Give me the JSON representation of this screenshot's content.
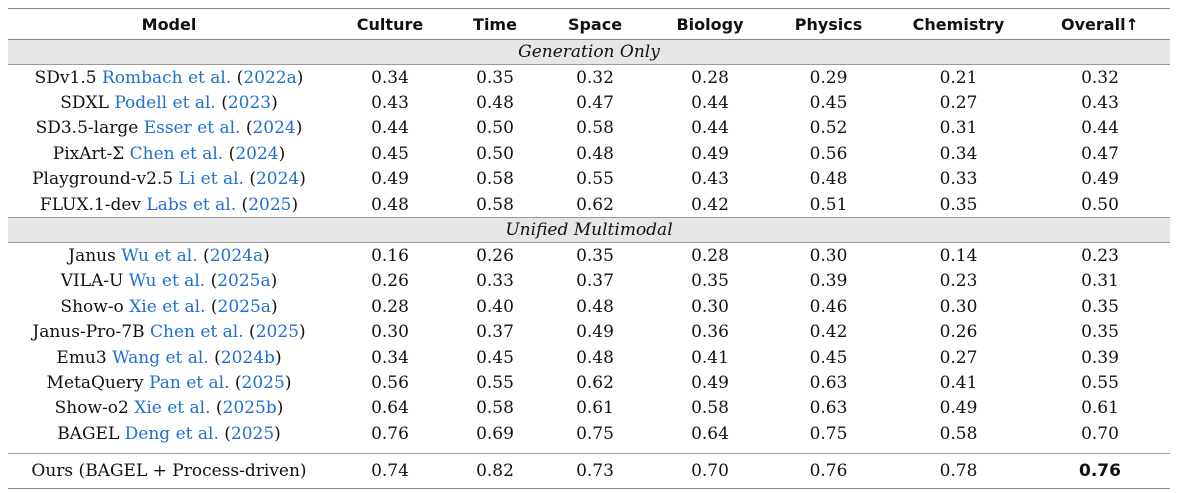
{
  "headers": [
    "Model",
    "Culture",
    "Time",
    "Space",
    "Biology",
    "Physics",
    "Chemistry",
    "Overall↑"
  ],
  "sections": [
    {
      "title": "Generation Only",
      "rows": [
        {
          "name": "SDv1.5",
          "cite_authors": "Rombach et al.",
          "cite_year": "2022a",
          "values": [
            "0.34",
            "0.35",
            "0.32",
            "0.28",
            "0.29",
            "0.21",
            "0.32"
          ]
        },
        {
          "name": "SDXL",
          "cite_authors": "Podell et al.",
          "cite_year": "2023",
          "values": [
            "0.43",
            "0.48",
            "0.47",
            "0.44",
            "0.45",
            "0.27",
            "0.43"
          ]
        },
        {
          "name": "SD3.5-large",
          "cite_authors": "Esser et al.",
          "cite_year": "2024",
          "values": [
            "0.44",
            "0.50",
            "0.58",
            "0.44",
            "0.52",
            "0.31",
            "0.44"
          ]
        },
        {
          "name": "PixArt-Σ",
          "cite_authors": "Chen et al.",
          "cite_year": "2024",
          "values": [
            "0.45",
            "0.50",
            "0.48",
            "0.49",
            "0.56",
            "0.34",
            "0.47"
          ]
        },
        {
          "name": "Playground-v2.5",
          "cite_authors": "Li et al.",
          "cite_year": "2024",
          "values": [
            "0.49",
            "0.58",
            "0.55",
            "0.43",
            "0.48",
            "0.33",
            "0.49"
          ]
        },
        {
          "name": "FLUX.1-dev",
          "cite_authors": "Labs et al.",
          "cite_year": "2025",
          "values": [
            "0.48",
            "0.58",
            "0.62",
            "0.42",
            "0.51",
            "0.35",
            "0.50"
          ]
        }
      ]
    },
    {
      "title": "Unified Multimodal",
      "rows": [
        {
          "name": "Janus",
          "cite_authors": "Wu et al.",
          "cite_year": "2024a",
          "values": [
            "0.16",
            "0.26",
            "0.35",
            "0.28",
            "0.30",
            "0.14",
            "0.23"
          ]
        },
        {
          "name": "VILA-U",
          "cite_authors": "Wu et al.",
          "cite_year": "2025a",
          "values": [
            "0.26",
            "0.33",
            "0.37",
            "0.35",
            "0.39",
            "0.23",
            "0.31"
          ]
        },
        {
          "name": "Show-o",
          "cite_authors": "Xie et al.",
          "cite_year": "2025a",
          "values": [
            "0.28",
            "0.40",
            "0.48",
            "0.30",
            "0.46",
            "0.30",
            "0.35"
          ]
        },
        {
          "name": "Janus-Pro-7B",
          "cite_authors": "Chen et al.",
          "cite_year": "2025",
          "values": [
            "0.30",
            "0.37",
            "0.49",
            "0.36",
            "0.42",
            "0.26",
            "0.35"
          ]
        },
        {
          "name": "Emu3",
          "cite_authors": "Wang et al.",
          "cite_year": "2024b",
          "values": [
            "0.34",
            "0.45",
            "0.48",
            "0.41",
            "0.45",
            "0.27",
            "0.39"
          ]
        },
        {
          "name": "MetaQuery",
          "cite_authors": "Pan et al.",
          "cite_year": "2025",
          "values": [
            "0.56",
            "0.55",
            "0.62",
            "0.49",
            "0.63",
            "0.41",
            "0.55"
          ]
        },
        {
          "name": "Show-o2",
          "cite_authors": "Xie et al.",
          "cite_year": "2025b",
          "values": [
            "0.64",
            "0.58",
            "0.61",
            "0.58",
            "0.63",
            "0.49",
            "0.61"
          ]
        },
        {
          "name": "BAGEL",
          "cite_authors": "Deng et al.",
          "cite_year": "2025",
          "values": [
            "0.76",
            "0.69",
            "0.75",
            "0.64",
            "0.75",
            "0.58",
            "0.70"
          ]
        }
      ]
    }
  ],
  "ours": {
    "name": "Ours (BAGEL + Process-driven)",
    "values": [
      "0.74",
      "0.82",
      "0.73",
      "0.70",
      "0.76",
      "0.78",
      "0.76"
    ]
  },
  "colors": {
    "citation": "#1f6fd1",
    "section_bg": "#e6e6e6"
  }
}
